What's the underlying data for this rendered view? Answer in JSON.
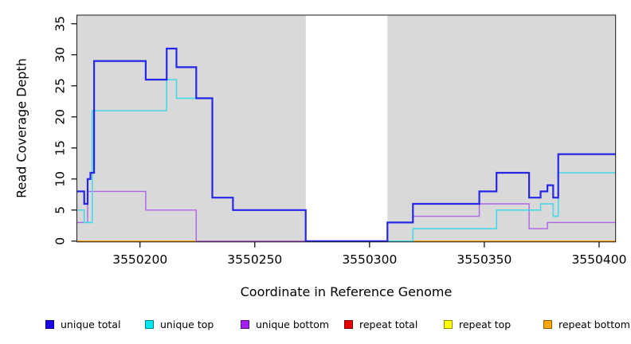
{
  "chart_data": {
    "type": "line",
    "subtype": "step",
    "title": "",
    "xlabel": "Coordinate in Reference Genome",
    "ylabel": "Read Coverage Depth",
    "xlim": [
      3550172.5,
      3550407.2
    ],
    "ylim": [
      0,
      36.4
    ],
    "grid": false,
    "x_ticks": {
      "values": [
        3550200,
        3550250,
        3550300,
        3550350,
        3550400
      ],
      "labels": [
        "3550200",
        "3550250",
        "3550300",
        "3550350",
        "3550400"
      ]
    },
    "y_ticks": {
      "values": [
        0,
        5,
        10,
        15,
        20,
        25,
        30,
        35
      ],
      "labels": [
        "0",
        "5",
        "10",
        "15",
        "20",
        "25",
        "30",
        "35"
      ]
    },
    "panel": {
      "background": "#D9D9D9",
      "border_color": "#1A1A1A",
      "masked_region": {
        "from": 3550272.2,
        "to": 3550307.8,
        "color": "#FFFFFF"
      }
    },
    "series": [
      {
        "name": "repeat total",
        "color": "#E60000",
        "width": 1.4,
        "points": [
          [
            3550172.5,
            0
          ]
        ]
      },
      {
        "name": "repeat top",
        "color": "#FFFF00",
        "width": 1.4,
        "points": [
          [
            3550172.5,
            0
          ]
        ]
      },
      {
        "name": "repeat bottom",
        "color": "#FFA500",
        "width": 1.6,
        "points": [
          [
            3550172.5,
            0
          ]
        ]
      },
      {
        "name": "unique bottom",
        "color": "#AE62E8",
        "width": 1.4,
        "points": [
          [
            3550172.5,
            3
          ],
          [
            3550177.2,
            8
          ],
          [
            3550202.5,
            5
          ],
          [
            3550224.5,
            0
          ],
          [
            3550307.8,
            3
          ],
          [
            3550318.9,
            4
          ],
          [
            3550347.8,
            6
          ],
          [
            3550369.5,
            2
          ],
          [
            3550377.5,
            3
          ]
        ]
      },
      {
        "name": "unique top",
        "color": "#45D9E8",
        "width": 1.6,
        "points": [
          [
            3550172.5,
            5
          ],
          [
            3550175.7,
            3
          ],
          [
            3550179.2,
            21
          ],
          [
            3550211.6,
            26
          ],
          [
            3550215.9,
            23
          ],
          [
            3550231.5,
            7
          ],
          [
            3550240.5,
            5
          ],
          [
            3550272.2,
            0
          ],
          [
            3550318.9,
            2
          ],
          [
            3550355.3,
            5
          ],
          [
            3550374.5,
            6
          ],
          [
            3550380,
            4
          ],
          [
            3550382.2,
            11
          ]
        ]
      },
      {
        "name": "unique total",
        "color": "#2626E6",
        "width": 2.2,
        "points": [
          [
            3550172.5,
            8
          ],
          [
            3550175.7,
            6
          ],
          [
            3550177.2,
            10
          ],
          [
            3550178.4,
            11
          ],
          [
            3550180,
            29
          ],
          [
            3550202.5,
            26
          ],
          [
            3550211.6,
            31
          ],
          [
            3550215.9,
            28
          ],
          [
            3550224.5,
            23
          ],
          [
            3550231.5,
            7
          ],
          [
            3550240.5,
            5
          ],
          [
            3550272.2,
            0
          ],
          [
            3550307.8,
            3
          ],
          [
            3550318.9,
            6
          ],
          [
            3550347.8,
            8
          ],
          [
            3550355.3,
            11
          ],
          [
            3550369.5,
            7
          ],
          [
            3550374.5,
            8
          ],
          [
            3550377.5,
            9
          ],
          [
            3550380,
            7
          ],
          [
            3550382.2,
            14
          ]
        ]
      }
    ],
    "legend": [
      {
        "label": "unique total",
        "color": "#1800E8"
      },
      {
        "label": "unique top",
        "color": "#00E8F0"
      },
      {
        "label": "unique bottom",
        "color": "#A020F0"
      },
      {
        "label": "repeat total",
        "color": "#E60000"
      },
      {
        "label": "repeat top",
        "color": "#FFFF00"
      },
      {
        "label": "repeat bottom",
        "color": "#FFA500"
      }
    ],
    "legend_position": "bottom"
  }
}
